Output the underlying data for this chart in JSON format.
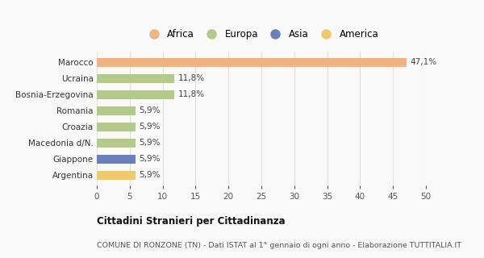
{
  "categories": [
    "Argentina",
    "Giappone",
    "Macedonia d/N.",
    "Croazia",
    "Romania",
    "Bosnia-Erzegovina",
    "Ucraina",
    "Marocco"
  ],
  "values": [
    5.9,
    5.9,
    5.9,
    5.9,
    5.9,
    11.8,
    11.8,
    47.1
  ],
  "labels": [
    "5,9%",
    "5,9%",
    "5,9%",
    "5,9%",
    "5,9%",
    "11,8%",
    "11,8%",
    "47,1%"
  ],
  "colors": [
    "#f0c96e",
    "#6b80b8",
    "#b5c98e",
    "#b5c98e",
    "#b5c98e",
    "#b5c98e",
    "#b5c98e",
    "#f0b482"
  ],
  "legend": [
    {
      "label": "Africa",
      "color": "#f0b482"
    },
    {
      "label": "Europa",
      "color": "#b5c98e"
    },
    {
      "label": "Asia",
      "color": "#6b80b8"
    },
    {
      "label": "America",
      "color": "#f0c96e"
    }
  ],
  "xlim": [
    0,
    50
  ],
  "xticks": [
    0,
    5,
    10,
    15,
    20,
    25,
    30,
    35,
    40,
    45,
    50
  ],
  "title_main": "Cittadini Stranieri per Cittadinanza",
  "title_sub": "COMUNE DI RONZONE (TN) - Dati ISTAT al 1° gennaio di ogni anno - Elaborazione TUTTITALIA.IT",
  "bg_color": "#f9f9f9",
  "grid_color": "#e0e0e0",
  "bar_height": 0.55,
  "label_fontsize": 7.5,
  "tick_fontsize": 7.5,
  "legend_fontsize": 8.5,
  "title_fontsize": 8.5,
  "sub_fontsize": 6.8
}
